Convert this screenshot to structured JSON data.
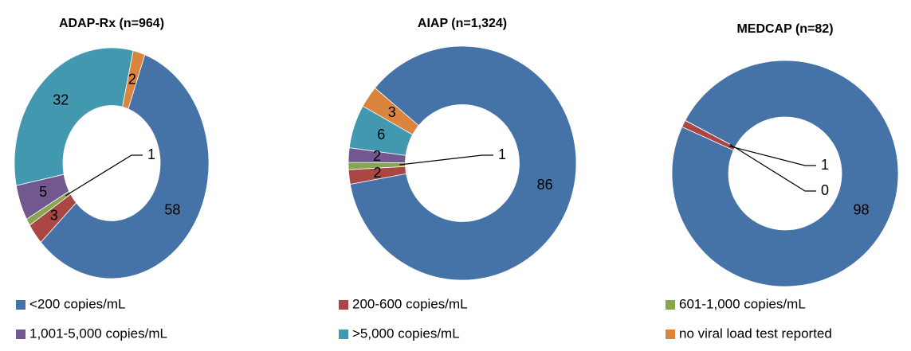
{
  "legend": {
    "categories": [
      "<200 copies/mL",
      "200-600 copies/mL",
      "601-1,000 copies/mL",
      "1,001-5,000 copies/mL",
      ">5,000 copies/mL",
      "no viral load test reported"
    ],
    "colors": [
      "#4572a7",
      "#aa4643",
      "#89a54e",
      "#71588f",
      "#4198af",
      "#db843d"
    ]
  },
  "chart_data": [
    {
      "type": "donut",
      "title": "ADAP-Rx (n=964)",
      "values": [
        58,
        3,
        1,
        5,
        32,
        2
      ]
    },
    {
      "type": "donut",
      "title": "AIAP (n=1,324)",
      "values": [
        86,
        2,
        1,
        2,
        6,
        3
      ]
    },
    {
      "type": "donut",
      "title": "MEDCAP (n=82)",
      "values": [
        98,
        1,
        null,
        null,
        0,
        null
      ]
    }
  ]
}
